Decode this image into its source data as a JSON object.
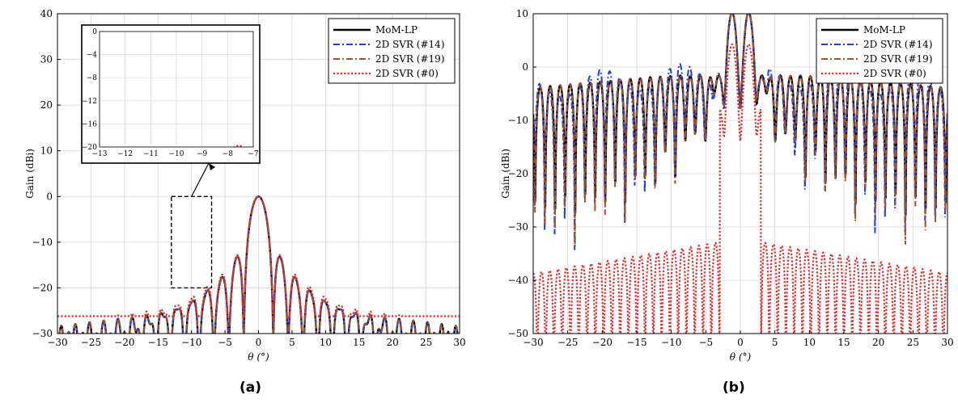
{
  "chart_data": [
    {
      "type": "line",
      "panel_label": "(a)",
      "xlabel": "θ (°)",
      "ylabel": "Gain (dBi)",
      "xlim": [
        -30,
        30
      ],
      "ylim": [
        -30,
        40
      ],
      "xticks": [
        -30,
        -25,
        -20,
        -15,
        -10,
        -5,
        0,
        5,
        10,
        15,
        20,
        25,
        30
      ],
      "yticks": [
        -30,
        -20,
        -10,
        0,
        10,
        20,
        30,
        40
      ],
      "grid": true,
      "legend_position": "top-right",
      "series": [
        {
          "name": "MoM-LP",
          "color": "#000000",
          "style": "solid"
        },
        {
          "name": "2D SVR (#14)",
          "color": "#1f3ee0",
          "style": "dashdot"
        },
        {
          "name": "2D SVR (#19)",
          "color": "#a0522d",
          "style": "dashdot"
        },
        {
          "name": "2D SVR (#0)",
          "color": "#e8272b",
          "style": "dotted"
        }
      ],
      "inset": {
        "xlim": [
          -13,
          -7
        ],
        "ylim": [
          -20,
          0
        ],
        "xticks": [
          -13,
          -12,
          -11,
          -10,
          -9,
          -8,
          -7
        ],
        "yticks": [
          -20,
          -16,
          -12,
          -8,
          -4,
          0
        ]
      }
    },
    {
      "type": "line",
      "panel_label": "(b)",
      "xlabel": "θ (°)",
      "ylabel": "Gain (dBi)",
      "xlim": [
        -30,
        30
      ],
      "ylim": [
        -50,
        10
      ],
      "xticks": [
        -30,
        -25,
        -20,
        -15,
        -10,
        -5,
        0,
        5,
        10,
        15,
        20,
        25,
        30
      ],
      "yticks": [
        -50,
        -40,
        -30,
        -20,
        -10,
        0,
        10
      ],
      "grid": true,
      "legend_position": "top-right",
      "series": [
        {
          "name": "MoM-LP",
          "color": "#000000",
          "style": "solid"
        },
        {
          "name": "2D SVR (#14)",
          "color": "#1f3ee0",
          "style": "dashdot"
        },
        {
          "name": "2D SVR (#19)",
          "color": "#a0522d",
          "style": "dashdot"
        },
        {
          "name": "2D SVR (#0)",
          "color": "#e8272b",
          "style": "dotted"
        }
      ]
    }
  ]
}
